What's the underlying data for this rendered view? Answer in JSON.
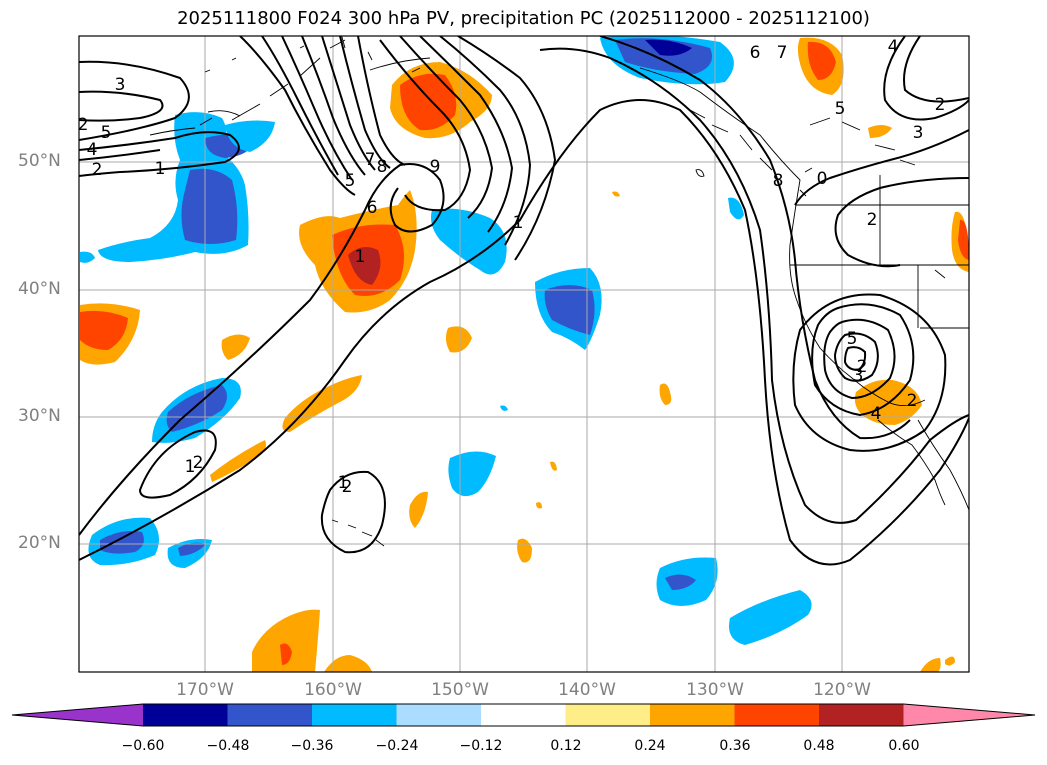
{
  "title": "2025111800 F024 300 hPa PV, precipitation PC (2025112000 - 2025112100)",
  "latitude_labels": [
    "50°N",
    "40°N",
    "30°N",
    "20°N"
  ],
  "longitude_labels": [
    "170°W",
    "160°W",
    "150°W",
    "140°W",
    "130°W",
    "120°W"
  ],
  "pv_contour_labels": [
    "3",
    "2",
    "1",
    "5",
    "4",
    "2",
    "1",
    "7",
    "8",
    "9",
    "5",
    "6",
    "2",
    "1",
    "1",
    "2",
    "6",
    "7",
    "4",
    "2",
    "3",
    "5",
    "8",
    "0",
    "2",
    "5",
    "4",
    "3",
    "2",
    "2",
    "1"
  ],
  "colorbar": {
    "ticks": [
      "−0.60",
      "−0.48",
      "−0.36",
      "−0.24",
      "−0.12",
      "0.12",
      "0.24",
      "0.36",
      "0.48",
      "0.60"
    ],
    "colors": [
      "#9933cc",
      "#000099",
      "#3355cc",
      "#00bbff",
      "#aaddff",
      "#ffffff",
      "#ffee88",
      "#ffa500",
      "#ff4400",
      "#b22222",
      "#ff88aa"
    ]
  }
}
